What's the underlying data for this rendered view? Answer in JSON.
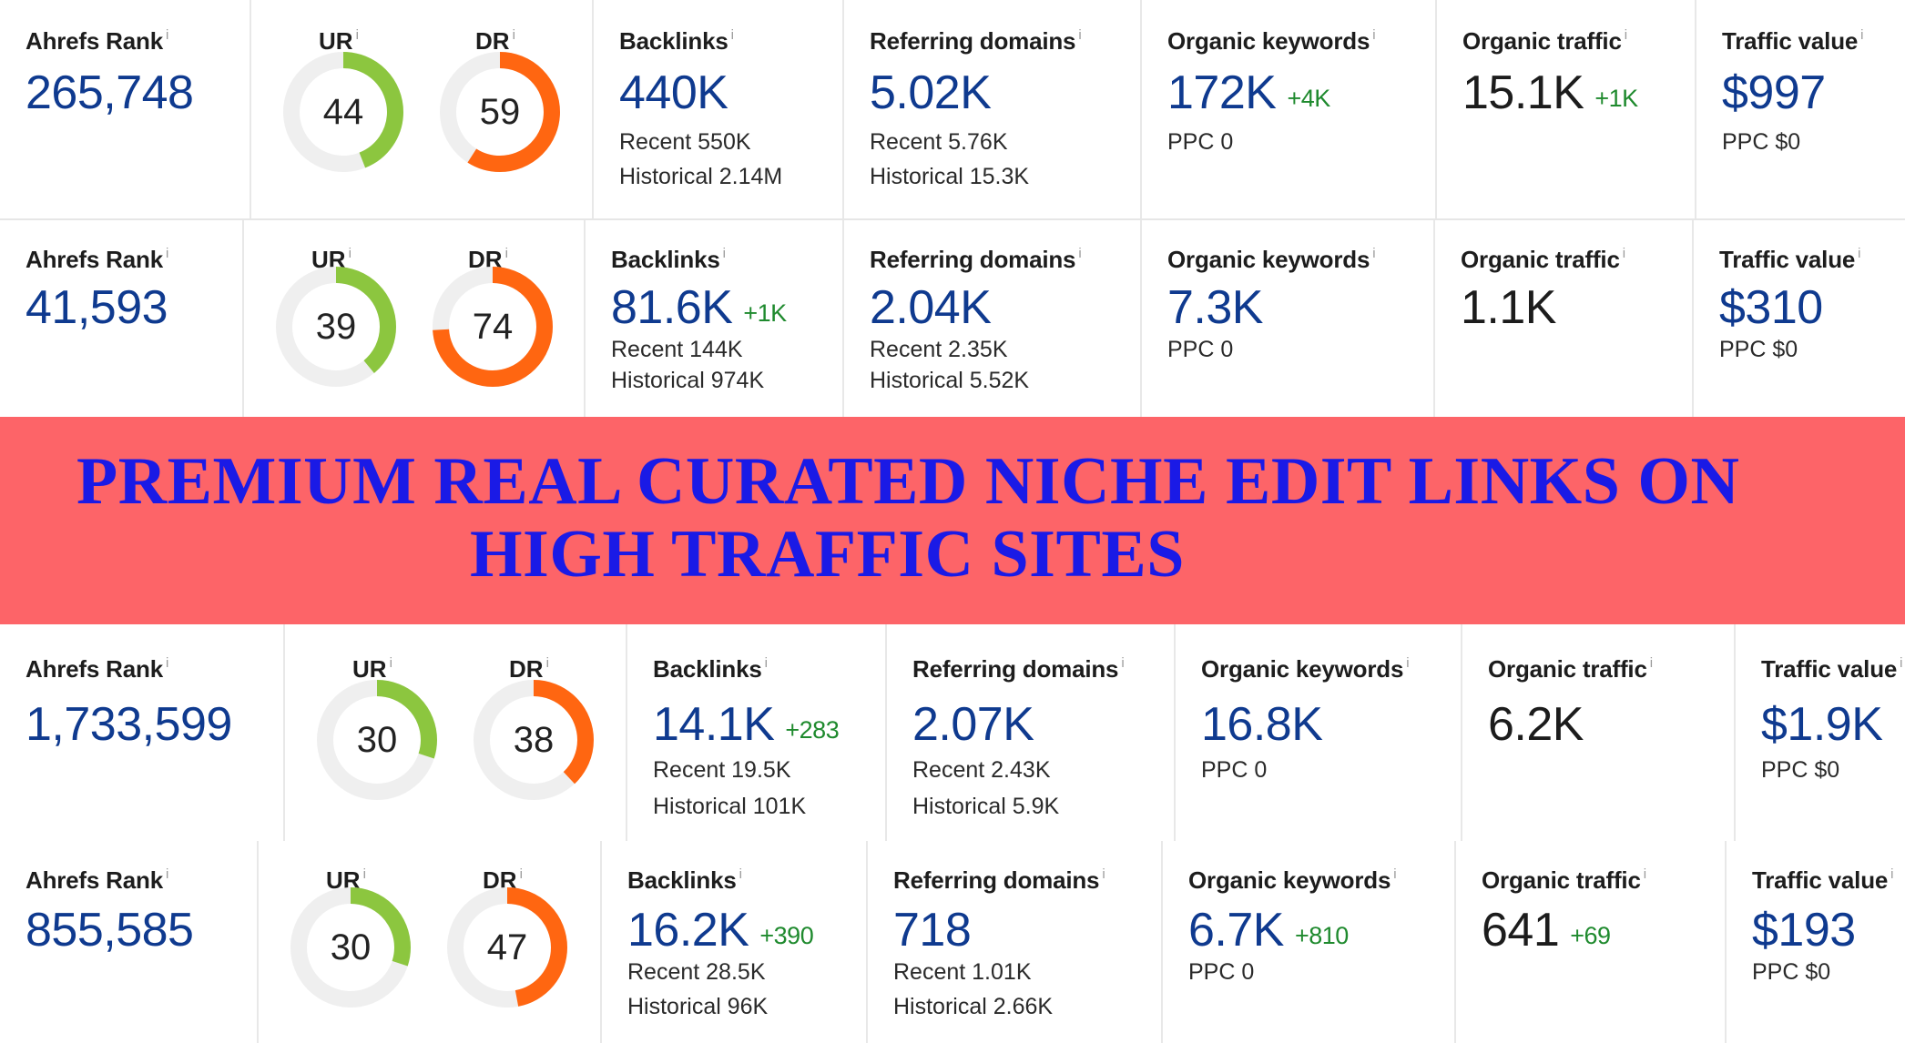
{
  "labels": {
    "ahrefs_rank": "Ahrefs Rank",
    "ur": "UR",
    "dr": "DR",
    "backlinks": "Backlinks",
    "referring_domains": "Referring domains",
    "organic_keywords": "Organic keywords",
    "organic_traffic": "Organic traffic",
    "traffic_value": "Traffic value",
    "info": "i"
  },
  "colors": {
    "ur": "#8cc63f",
    "dr": "#ff6611",
    "track": "#efefef",
    "banner": "#fd6468",
    "banner_text": "#1a1ae6"
  },
  "banner": {
    "line1": "PREMIUM REAL CURATED NICHE EDIT LINKS ON",
    "line2": "HIGH TRAFFIC SITES"
  },
  "rows": [
    {
      "ahrefs_rank": "265,748",
      "ur": 44,
      "dr": 59,
      "backlinks": {
        "value": "440K",
        "delta": "",
        "recent": "Recent 550K",
        "historical": "Historical 2.14M"
      },
      "referring_domains": {
        "value": "5.02K",
        "recent": "Recent 5.76K",
        "historical": "Historical 15.3K"
      },
      "organic_keywords": {
        "value": "172K",
        "delta": "+4K",
        "ppc": "PPC 0"
      },
      "organic_traffic": {
        "value": "15.1K",
        "delta": "+1K"
      },
      "traffic_value": {
        "value": "$997",
        "ppc": "PPC $0"
      }
    },
    {
      "ahrefs_rank": "41,593",
      "ur": 39,
      "dr": 74,
      "backlinks": {
        "value": "81.6K",
        "delta": "+1K",
        "recent": "Recent 144K",
        "historical": "Historical 974K"
      },
      "referring_domains": {
        "value": "2.04K",
        "recent": "Recent 2.35K",
        "historical": "Historical 5.52K"
      },
      "organic_keywords": {
        "value": "7.3K",
        "delta": "",
        "ppc": "PPC 0"
      },
      "organic_traffic": {
        "value": "1.1K",
        "delta": ""
      },
      "traffic_value": {
        "value": "$310",
        "ppc": "PPC $0"
      }
    },
    {
      "ahrefs_rank": "1,733,599",
      "ur": 30,
      "dr": 38,
      "backlinks": {
        "value": "14.1K",
        "delta": "+283",
        "recent": "Recent 19.5K",
        "historical": "Historical 101K"
      },
      "referring_domains": {
        "value": "2.07K",
        "recent": "Recent 2.43K",
        "historical": "Historical 5.9K"
      },
      "organic_keywords": {
        "value": "16.8K",
        "delta": "",
        "ppc": "PPC 0"
      },
      "organic_traffic": {
        "value": "6.2K",
        "delta": ""
      },
      "traffic_value": {
        "value": "$1.9K",
        "ppc": "PPC $0"
      }
    },
    {
      "ahrefs_rank": "855,585",
      "ur": 30,
      "dr": 47,
      "backlinks": {
        "value": "16.2K",
        "delta": "+390",
        "recent": "Recent 28.5K",
        "historical": "Historical 96K"
      },
      "referring_domains": {
        "value": "718",
        "recent": "Recent 1.01K",
        "historical": "Historical 2.66K"
      },
      "organic_keywords": {
        "value": "6.7K",
        "delta": "+810",
        "ppc": "PPC 0"
      },
      "organic_traffic": {
        "value": "641",
        "delta": "+69"
      },
      "traffic_value": {
        "value": "$193",
        "ppc": "PPC $0"
      }
    }
  ]
}
